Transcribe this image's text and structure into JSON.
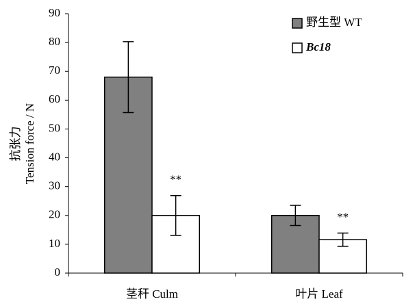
{
  "chart_data": {
    "type": "bar",
    "ylabel": [
      "抗张力",
      "Tension force / N"
    ],
    "categories": [
      "茎秆 Culm",
      "叶片 Leaf"
    ],
    "series": [
      {
        "name": "野生型 WT",
        "color": "#808080",
        "values": [
          68,
          20
        ],
        "errors": [
          12.3,
          3.5
        ]
      },
      {
        "name": "Bc18",
        "color": "#ffffff",
        "values": [
          20,
          11.6
        ],
        "errors": [
          6.9,
          2.3
        ],
        "annotations": [
          "**",
          "**"
        ]
      }
    ],
    "ylim": [
      0,
      90
    ],
    "yticks": [
      0,
      10,
      20,
      30,
      40,
      50,
      60,
      70,
      80,
      90
    ],
    "grid": false,
    "legend": "upper right"
  }
}
